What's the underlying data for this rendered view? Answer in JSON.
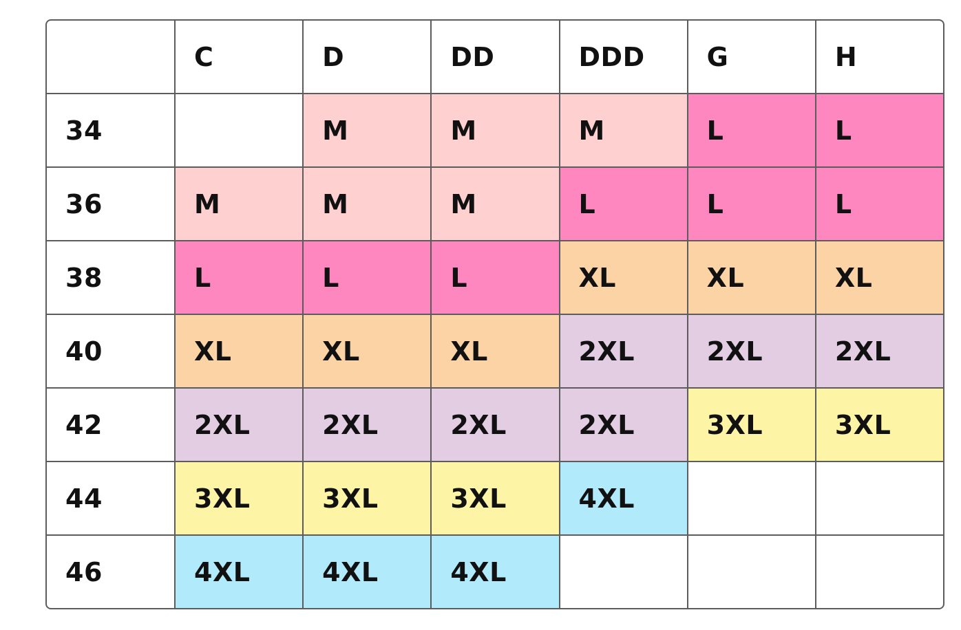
{
  "table": {
    "columns": [
      "C",
      "D",
      "DD",
      "DDD",
      "G",
      "H"
    ],
    "rows": [
      {
        "band": "34",
        "sizes": [
          null,
          "M",
          "M",
          "M",
          "L",
          "L"
        ]
      },
      {
        "band": "36",
        "sizes": [
          "M",
          "M",
          "M",
          "L",
          "L",
          "L"
        ]
      },
      {
        "band": "38",
        "sizes": [
          "L",
          "L",
          "L",
          "XL",
          "XL",
          "XL"
        ]
      },
      {
        "band": "40",
        "sizes": [
          "XL",
          "XL",
          "XL",
          "2XL",
          "2XL",
          "2XL"
        ]
      },
      {
        "band": "42",
        "sizes": [
          "2XL",
          "2XL",
          "2XL",
          "2XL",
          "3XL",
          "3XL"
        ]
      },
      {
        "band": "44",
        "sizes": [
          "3XL",
          "3XL",
          "3XL",
          "4XL",
          null,
          null
        ]
      },
      {
        "band": "46",
        "sizes": [
          "4XL",
          "4XL",
          "4XL",
          null,
          null,
          null
        ]
      }
    ],
    "colors": {
      "M": "#ffd0d0",
      "L": "#ff87c0",
      "XL": "#fcd3a5",
      "2XL": "#e3cde3",
      "3XL": "#fdf5a5",
      "4XL": "#b1ebfb"
    }
  }
}
